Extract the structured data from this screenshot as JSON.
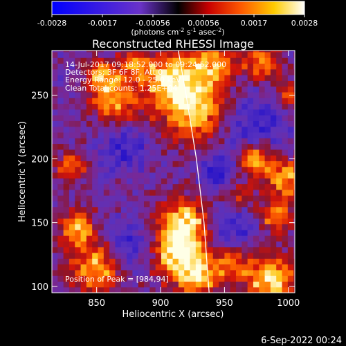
{
  "chart_data": {
    "type": "heatmap",
    "title": "Reconstructed RHESSI Image",
    "colorbar": {
      "ticks": [
        "-0.0028",
        "-0.0017",
        "-0.00056",
        "0.00056",
        "0.0017",
        "0.0028"
      ],
      "range": [
        -0.0028,
        0.0028
      ],
      "unit_label": "(photons cm",
      "unit_sup1": "-2",
      "unit_mid": " s",
      "unit_sup2": "-1",
      "unit_end": " asec",
      "unit_sup3": "-2",
      "unit_close": ")",
      "colormap": "blue-purple-red-orange-yellow-white"
    },
    "xlabel": "Heliocentric X (arcsec)",
    "ylabel": "Heliocentric Y (arcsec)",
    "xlim": [
      815,
      1005
    ],
    "ylim": [
      95,
      285
    ],
    "xticks": [
      {
        "value": 850,
        "label": "850"
      },
      {
        "value": 900,
        "label": "900"
      },
      {
        "value": 950,
        "label": "950"
      },
      {
        "value": 1000,
        "label": "1000"
      }
    ],
    "yticks": [
      {
        "value": 100,
        "label": "100"
      },
      {
        "value": 150,
        "label": "150"
      },
      {
        "value": 200,
        "label": "200"
      },
      {
        "value": 250,
        "label": "250"
      }
    ],
    "annotations": {
      "time_range": "14-Jul-2017 09:18:52.000 to 09:24:52.000",
      "detectors": "Detectors: 3F 6F 8F, Att 0",
      "energy": "Energy Range: 12.0 - 25.0 keV",
      "clean": "Clean    Total counts: 1.25E+04",
      "peak": "Position of Peak = [984,94]"
    },
    "limb_curve": [
      [
        913,
        290
      ],
      [
        920,
        250
      ],
      [
        928,
        200
      ],
      [
        934,
        150
      ],
      [
        938,
        95
      ]
    ],
    "peak_position": [
      984,
      94
    ],
    "grid": false,
    "footer_date": "6-Sep-2022 00:24"
  }
}
